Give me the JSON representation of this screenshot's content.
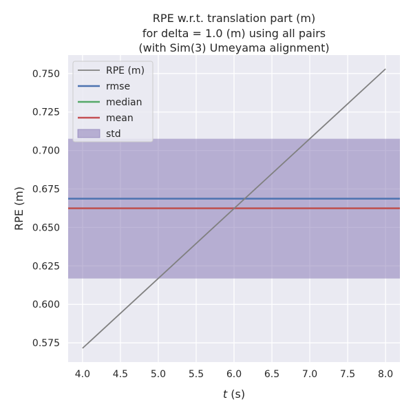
{
  "chart_data": {
    "type": "line",
    "title_lines": [
      "RPE w.r.t. translation part (m)",
      "for delta = 1.0 (m) using all pairs",
      "(with Sim(3) Umeyama alignment)"
    ],
    "xlabel": "t (s)",
    "xlabel_var": "t",
    "xlabel_unit": " (s)",
    "ylabel": "RPE (m)",
    "xlim": [
      3.81,
      8.19
    ],
    "ylim": [
      0.5625,
      0.762
    ],
    "x_ticks": [
      "4.0",
      "4.5",
      "5.0",
      "5.5",
      "6.0",
      "6.5",
      "7.0",
      "7.5",
      "8.0"
    ],
    "y_ticks": [
      "0.575",
      "0.600",
      "0.625",
      "0.650",
      "0.675",
      "0.700",
      "0.725",
      "0.750"
    ],
    "grid": true,
    "legend_position": "top-left",
    "series": [
      {
        "name": "RPE (m)",
        "color": "#808080",
        "x": [
          4.0,
          8.0
        ],
        "y": [
          0.5715,
          0.753
        ]
      },
      {
        "name": "rmse",
        "color": "#4c72b0",
        "value": 0.6687
      },
      {
        "name": "median",
        "color": "#55a868",
        "value": 0.6624
      },
      {
        "name": "mean",
        "color": "#c44e52",
        "value": 0.6624
      },
      {
        "name": "std",
        "color": "#8172b2",
        "band": [
          0.6168,
          0.7076
        ]
      }
    ]
  }
}
